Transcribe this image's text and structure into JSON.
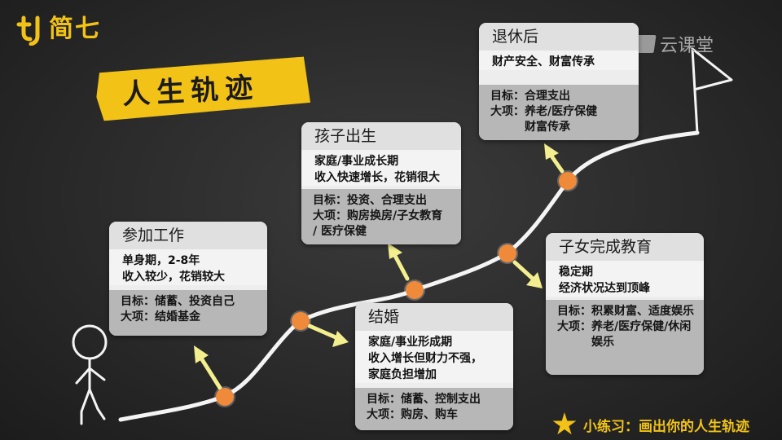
{
  "brand": {
    "name": "简七",
    "color": "#f2c316"
  },
  "title": "人生轨迹",
  "watermark": "云课堂",
  "colors": {
    "accent": "#f2c316",
    "node": "#ef8a3a",
    "arrow": "#f3ee8e",
    "background": "#2c2c2c"
  },
  "stages": [
    {
      "title": "参加工作",
      "desc": [
        "单身期，2-8年",
        "收入较少，花销较大"
      ],
      "goal": "储蓄、投资自己",
      "items": [
        "结婚基金"
      ]
    },
    {
      "title": "结婚",
      "desc": [
        "家庭/事业形成期",
        "收入增长但财力不强，",
        "家庭负担增加"
      ],
      "goal": "储蓄、控制支出",
      "items": [
        "购房、购车"
      ]
    },
    {
      "title": "孩子出生",
      "desc": [
        "家庭/事业成长期",
        "收入快速增长，花销很大"
      ],
      "goal": "投资、合理支出",
      "items": [
        "购房换房/子女教育",
        "/ 医疗保健"
      ]
    },
    {
      "title": "子女完成教育",
      "desc": [
        "稳定期",
        "经济状况达到顶峰"
      ],
      "goal": "积累财富、适度娱乐",
      "items": [
        "养老/医疗保健/休闲娱乐"
      ]
    },
    {
      "title": "退休后",
      "desc": [
        "财产安全、财富传承"
      ],
      "goal": "合理支出",
      "items": [
        "养老/医疗保健",
        "财富传承"
      ]
    }
  ],
  "labels": {
    "goal": "目标：",
    "item": "大项："
  },
  "exercise": "小练习：画出你的人生轨迹"
}
